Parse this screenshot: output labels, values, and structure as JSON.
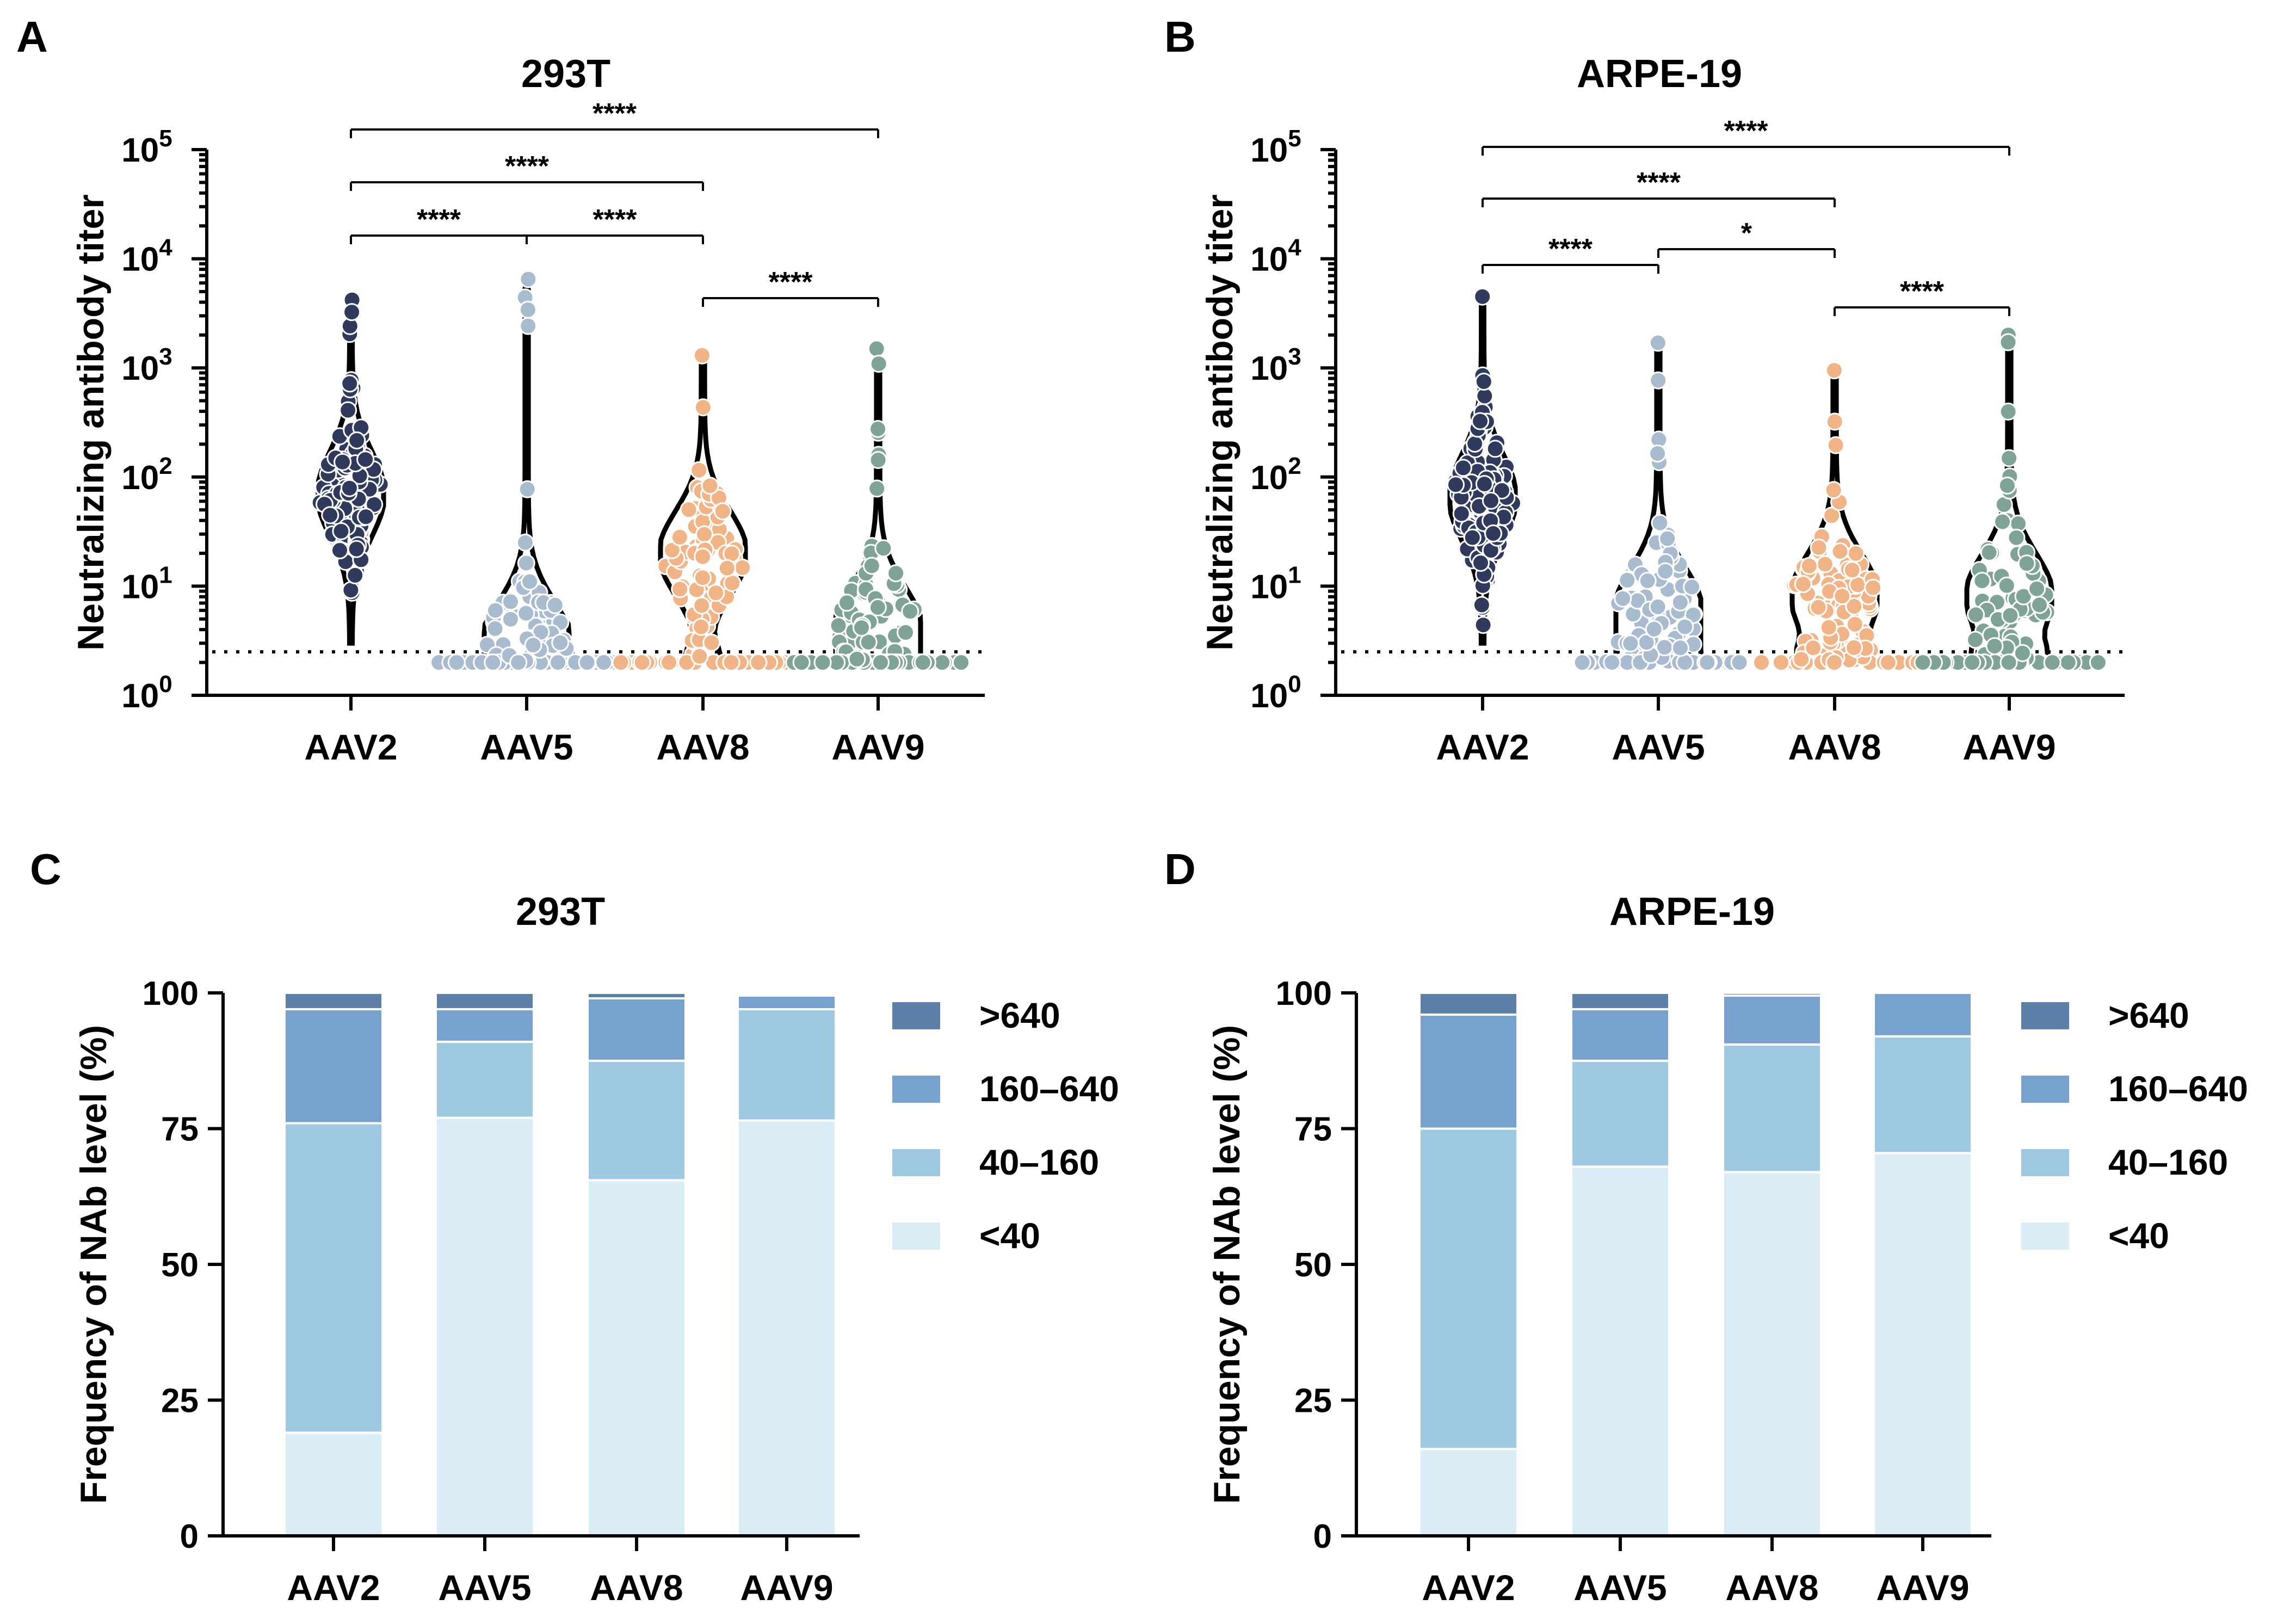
{
  "chart_data": [
    {
      "panel": "A",
      "type": "scatter",
      "subtype": "violin-dot",
      "title": "293T",
      "xlabel": "",
      "ylabel": "Neutralizing antibody titer",
      "yscale": "log10",
      "ylim": [
        1,
        100000
      ],
      "yticks": [
        {
          "base": "10",
          "exp": "0"
        },
        {
          "base": "10",
          "exp": "1"
        },
        {
          "base": "10",
          "exp": "2"
        },
        {
          "base": "10",
          "exp": "3"
        },
        {
          "base": "10",
          "exp": "4"
        },
        {
          "base": "10",
          "exp": "5"
        }
      ],
      "detection_limit": 2.5,
      "categories": [
        "AAV2",
        "AAV5",
        "AAV8",
        "AAV9"
      ],
      "series": [
        {
          "name": "AAV2",
          "color": "#2f3a5c",
          "min": 3,
          "max": 4200,
          "median": 70,
          "below_limit_fraction": 0.0
        },
        {
          "name": "AAV5",
          "color": "#a9bccf",
          "min": 2,
          "max": 6500,
          "median": 3,
          "below_limit_fraction": 0.45
        },
        {
          "name": "AAV8",
          "color": "#f0b486",
          "min": 2,
          "max": 1300,
          "median": 20,
          "below_limit_fraction": 0.2
        },
        {
          "name": "AAV9",
          "color": "#7fa394",
          "min": 2,
          "max": 1500,
          "median": 4,
          "below_limit_fraction": 0.45
        }
      ],
      "significance": [
        {
          "from": "AAV2",
          "to": "AAV9",
          "label": "****"
        },
        {
          "from": "AAV2",
          "to": "AAV8",
          "label": "****"
        },
        {
          "from": "AAV2",
          "to": "AAV5",
          "label": "****"
        },
        {
          "from": "AAV5",
          "to": "AAV8",
          "label": "****"
        },
        {
          "from": "AAV8",
          "to": "AAV9",
          "label": "****"
        }
      ]
    },
    {
      "panel": "B",
      "type": "scatter",
      "subtype": "violin-dot",
      "title": "ARPE-19",
      "xlabel": "",
      "ylabel": "Neutralizing antibody titer",
      "yscale": "log10",
      "ylim": [
        1,
        100000
      ],
      "yticks": [
        {
          "base": "10",
          "exp": "0"
        },
        {
          "base": "10",
          "exp": "1"
        },
        {
          "base": "10",
          "exp": "2"
        },
        {
          "base": "10",
          "exp": "3"
        },
        {
          "base": "10",
          "exp": "4"
        },
        {
          "base": "10",
          "exp": "5"
        }
      ],
      "detection_limit": 2.5,
      "categories": [
        "AAV2",
        "AAV5",
        "AAV8",
        "AAV9"
      ],
      "series": [
        {
          "name": "AAV2",
          "color": "#2f3a5c",
          "min": 3,
          "max": 4500,
          "median": 65,
          "below_limit_fraction": 0.0
        },
        {
          "name": "AAV5",
          "color": "#a9bccf",
          "min": 2,
          "max": 1700,
          "median": 6,
          "below_limit_fraction": 0.3
        },
        {
          "name": "AAV8",
          "color": "#f0b486",
          "min": 2,
          "max": 950,
          "median": 8,
          "below_limit_fraction": 0.3
        },
        {
          "name": "AAV9",
          "color": "#7fa394",
          "min": 2,
          "max": 2000,
          "median": 8,
          "below_limit_fraction": 0.3
        }
      ],
      "significance": [
        {
          "from": "AAV2",
          "to": "AAV9",
          "label": "****"
        },
        {
          "from": "AAV2",
          "to": "AAV8",
          "label": "****"
        },
        {
          "from": "AAV2",
          "to": "AAV5",
          "label": "****"
        },
        {
          "from": "AAV5",
          "to": "AAV8",
          "label": "*"
        },
        {
          "from": "AAV8",
          "to": "AAV9",
          "label": "****"
        }
      ]
    },
    {
      "panel": "C",
      "type": "bar",
      "subtype": "stacked",
      "title": "293T",
      "xlabel": "",
      "ylabel": "Frequency of NAb level (%)",
      "ylim": [
        0,
        100
      ],
      "yticks": [
        0,
        25,
        50,
        75,
        100
      ],
      "categories": [
        "AAV2",
        "AAV5",
        "AAV8",
        "AAV9"
      ],
      "series": [
        {
          "name": "<40",
          "color": "#daedf6",
          "values": [
            19,
            77,
            65.5,
            76.5
          ]
        },
        {
          "name": "40–160",
          "color": "#9fc8e2",
          "values": [
            57,
            14,
            22,
            20.5
          ]
        },
        {
          "name": "160–640",
          "color": "#77a2cd",
          "values": [
            21,
            6,
            11.5,
            2.5
          ]
        },
        {
          "name": ">640",
          "color": "#5c80aa",
          "values": [
            3,
            3,
            1,
            0
          ]
        }
      ],
      "legend": {
        "position": "right",
        "entries": [
          ">640",
          "160–640",
          "40–160",
          "<40"
        ]
      }
    },
    {
      "panel": "D",
      "type": "bar",
      "subtype": "stacked",
      "title": "ARPE-19",
      "xlabel": "",
      "ylabel": "Frequency of NAb level (%)",
      "ylim": [
        0,
        100
      ],
      "yticks": [
        0,
        25,
        50,
        75,
        100
      ],
      "categories": [
        "AAV2",
        "AAV5",
        "AAV8",
        "AAV9"
      ],
      "series": [
        {
          "name": "<40",
          "color": "#daedf6",
          "values": [
            16,
            68,
            67,
            70.5
          ]
        },
        {
          "name": "40–160",
          "color": "#9fc8e2",
          "values": [
            59,
            19.5,
            23.5,
            21.5
          ]
        },
        {
          "name": "160–640",
          "color": "#77a2cd",
          "values": [
            21,
            9.5,
            9,
            8
          ]
        },
        {
          "name": ">640",
          "color": "#5c80aa",
          "values": [
            4,
            3,
            0.5,
            0
          ]
        }
      ],
      "legend": {
        "position": "right",
        "entries": [
          ">640",
          "160–640",
          "40–160",
          "<40"
        ]
      }
    }
  ]
}
